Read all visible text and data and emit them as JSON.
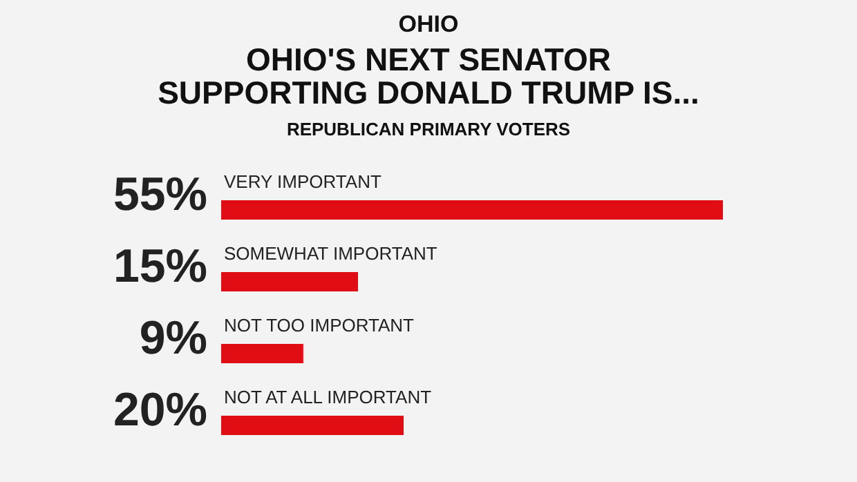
{
  "chart_data": {
    "type": "bar",
    "orientation": "horizontal",
    "title": "OHIO'S NEXT SENATOR SUPPORTING DONALD TRUMP IS...",
    "subtitle": "REPUBLICAN PRIMARY VOTERS",
    "annotations": [
      "OHIO"
    ],
    "categories": [
      "VERY IMPORTANT",
      "SOMEWHAT IMPORTANT",
      "NOT TOO IMPORTANT",
      "NOT AT ALL IMPORTANT"
    ],
    "values": [
      55,
      15,
      9,
      20
    ],
    "value_labels": [
      "55%",
      "15%",
      "9%",
      "20%"
    ],
    "color": "#e00d14",
    "xlim": [
      0,
      55
    ],
    "tick_labels": false
  }
}
